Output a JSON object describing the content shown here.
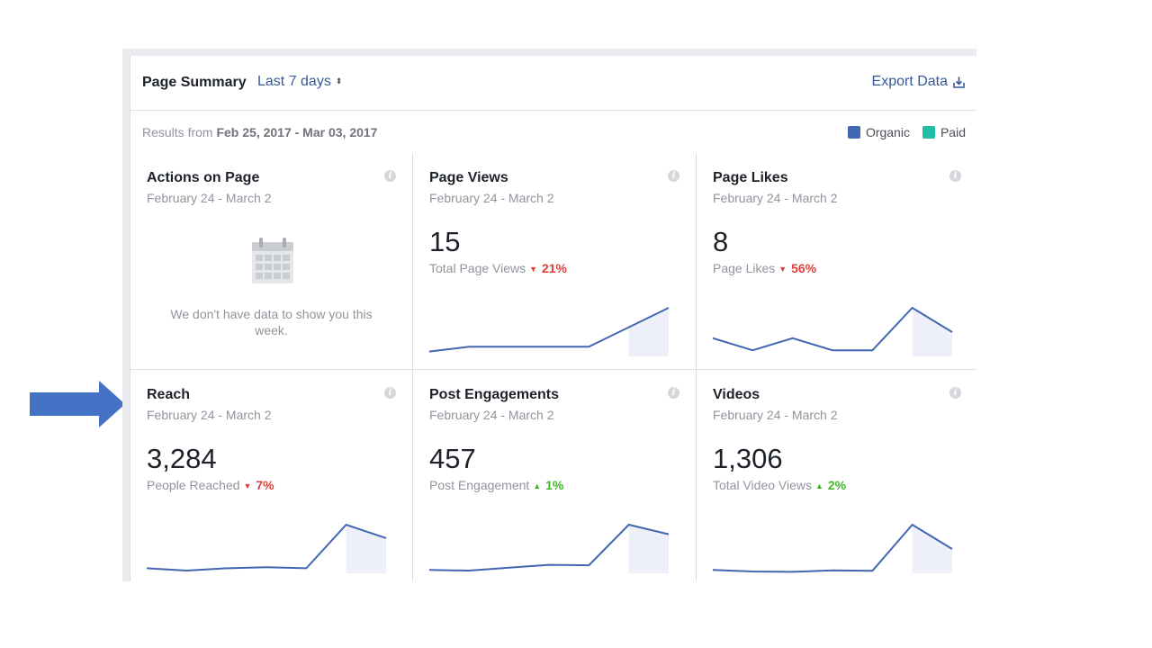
{
  "header": {
    "title": "Page Summary",
    "range": "Last 7 days",
    "range_caret": "⬍",
    "export_label": "Export Data"
  },
  "subheader": {
    "results_prefix": "Results from",
    "results_range": "Feb 25, 2017 - Mar 03, 2017",
    "legend": [
      {
        "label": "Organic",
        "color": "#4267b2"
      },
      {
        "label": "Paid",
        "color": "#20bea5"
      }
    ]
  },
  "cards": [
    {
      "title": "Actions on Page",
      "dates": "February 24 - March 2",
      "empty_message": "We don't have data to show you this week."
    },
    {
      "title": "Page Views",
      "dates": "February 24 - March 2",
      "value": "15",
      "metric": "Total Page Views",
      "change": "21%",
      "direction": "down",
      "trend": [
        1,
        2,
        2,
        2,
        2,
        6,
        10
      ]
    },
    {
      "title": "Page Likes",
      "dates": "February 24 - March 2",
      "value": "8",
      "metric": "Page Likes",
      "change": "56%",
      "direction": "down",
      "trend": [
        3,
        1,
        3,
        1,
        1,
        8,
        4
      ]
    },
    {
      "title": "Reach",
      "dates": "February 24 - March 2",
      "value": "3,284",
      "metric": "People Reached",
      "change": "7%",
      "direction": "down",
      "trend": [
        150,
        80,
        150,
        180,
        150,
        1450,
        1050
      ]
    },
    {
      "title": "Post Engagements",
      "dates": "February 24 - March 2",
      "value": "457",
      "metric": "Post Engagement",
      "change": "1%",
      "direction": "up",
      "trend": [
        15,
        12,
        25,
        38,
        36,
        218,
        175
      ]
    },
    {
      "title": "Videos",
      "dates": "February 24 - March 2",
      "value": "1,306",
      "metric": "Total Video Views",
      "change": "2%",
      "direction": "up",
      "trend": [
        35,
        18,
        15,
        30,
        25,
        500,
        250
      ]
    }
  ],
  "colors": {
    "line": "#4267b2",
    "fill": "#edf0f9",
    "down": "#e23d3d",
    "up": "#42b72a",
    "arrow": "#4472c4"
  },
  "icons": {
    "info": "i",
    "down": "▼",
    "up": "▲",
    "export": "download-icon",
    "empty": "calendar-icon"
  }
}
